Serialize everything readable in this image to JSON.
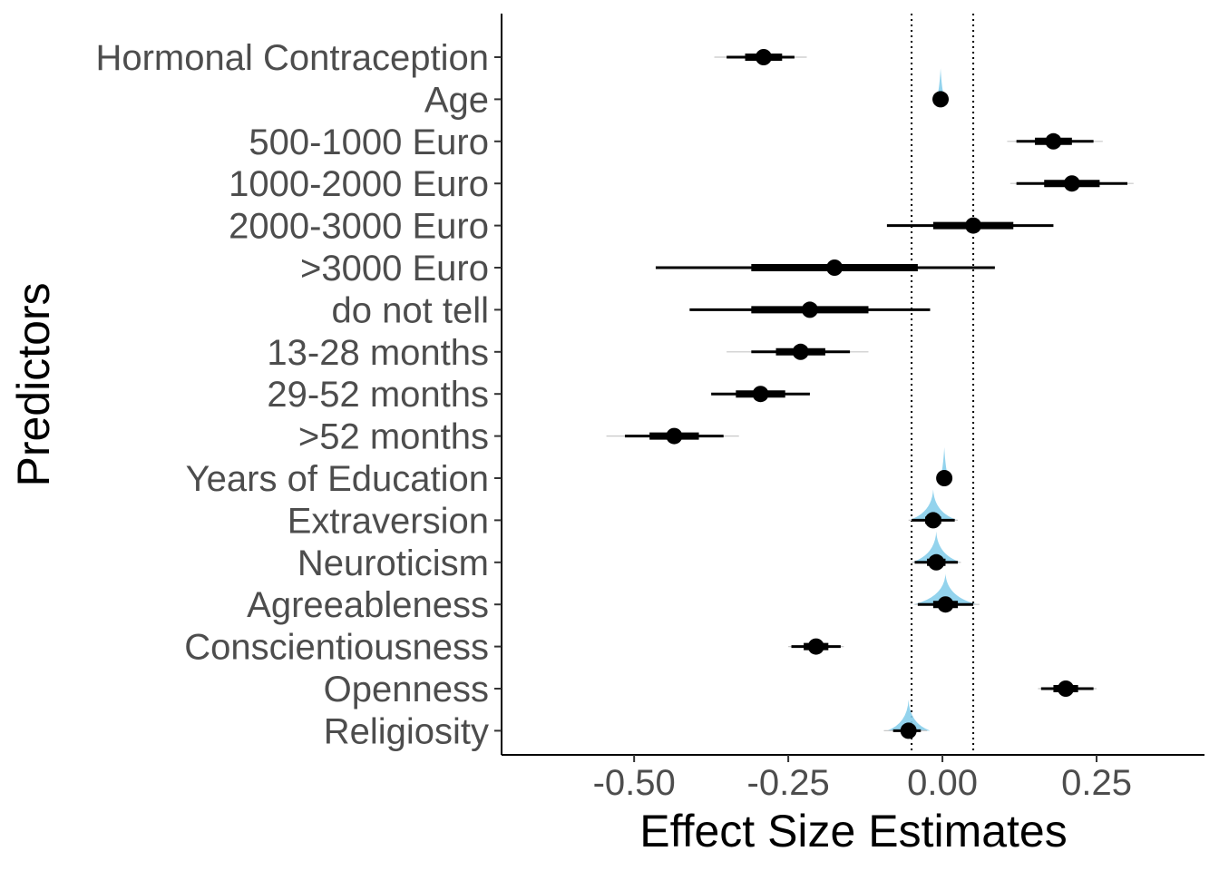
{
  "chart_data": {
    "type": "interval",
    "xlabel": "Effect Size Estimates",
    "ylabel": "Predictors",
    "xlim": [
      -0.715,
      0.425
    ],
    "x_ticks": [
      "-0.50",
      "-0.25",
      "0.00",
      "0.25"
    ],
    "x_tick_values": [
      -0.5,
      -0.25,
      0.0,
      0.25
    ],
    "reference_lines": [
      -0.05,
      0.05
    ],
    "reference_line_style": "dotted",
    "grid": false,
    "legend": "none",
    "colors": {
      "point": "#000000",
      "interval": "#000000",
      "density": "#87ceeb",
      "text": "#4d4d4d"
    },
    "predictors": [
      {
        "label": "Hormonal Contraception",
        "estimate": -0.29,
        "inner": [
          -0.32,
          -0.26
        ],
        "middle": [
          -0.35,
          -0.24
        ],
        "outer": [
          -0.37,
          -0.22
        ],
        "density": false
      },
      {
        "label": "Age",
        "estimate": -0.003,
        "inner": [
          -0.006,
          0.0
        ],
        "middle": [
          -0.008,
          0.002
        ],
        "outer": [
          -0.01,
          0.004
        ],
        "density": true
      },
      {
        "label": "500-1000 Euro",
        "estimate": 0.18,
        "inner": [
          0.15,
          0.21
        ],
        "middle": [
          0.12,
          0.245
        ],
        "outer": [
          0.105,
          0.26
        ],
        "density": false
      },
      {
        "label": "1000-2000 Euro",
        "estimate": 0.21,
        "inner": [
          0.165,
          0.255
        ],
        "middle": [
          0.12,
          0.3
        ],
        "outer": [
          0.11,
          0.31
        ],
        "density": false
      },
      {
        "label": "2000-3000 Euro",
        "estimate": 0.05,
        "inner": [
          -0.015,
          0.115
        ],
        "middle": [
          -0.09,
          0.18
        ],
        "outer": [
          -0.09,
          0.18
        ],
        "density": false
      },
      {
        "label": ">3000 Euro",
        "estimate": -0.175,
        "inner": [
          -0.31,
          -0.04
        ],
        "middle": [
          -0.465,
          0.085
        ],
        "outer": [
          -0.465,
          0.085
        ],
        "density": false
      },
      {
        "label": "do not tell",
        "estimate": -0.215,
        "inner": [
          -0.31,
          -0.12
        ],
        "middle": [
          -0.41,
          -0.02
        ],
        "outer": [
          -0.41,
          -0.02
        ],
        "density": false
      },
      {
        "label": "13-28 months",
        "estimate": -0.23,
        "inner": [
          -0.27,
          -0.19
        ],
        "middle": [
          -0.31,
          -0.15
        ],
        "outer": [
          -0.35,
          -0.12
        ],
        "density": false
      },
      {
        "label": "29-52 months",
        "estimate": -0.295,
        "inner": [
          -0.335,
          -0.255
        ],
        "middle": [
          -0.375,
          -0.215
        ],
        "outer": [
          -0.375,
          -0.215
        ],
        "density": false
      },
      {
        "label": ">52 months",
        "estimate": -0.435,
        "inner": [
          -0.475,
          -0.395
        ],
        "middle": [
          -0.515,
          -0.355
        ],
        "outer": [
          -0.545,
          -0.33
        ],
        "density": false
      },
      {
        "label": "Years of Education",
        "estimate": 0.003,
        "inner": [
          0.0,
          0.006
        ],
        "middle": [
          -0.002,
          0.008
        ],
        "outer": [
          -0.004,
          0.01
        ],
        "density": true
      },
      {
        "label": "Extraversion",
        "estimate": -0.015,
        "inner": [
          -0.028,
          -0.002
        ],
        "middle": [
          -0.05,
          0.02
        ],
        "outer": [
          -0.055,
          0.025
        ],
        "density": true
      },
      {
        "label": "Neuroticism",
        "estimate": -0.01,
        "inner": [
          -0.025,
          0.005
        ],
        "middle": [
          -0.045,
          0.025
        ],
        "outer": [
          -0.05,
          0.03
        ],
        "density": true
      },
      {
        "label": "Agreeableness",
        "estimate": 0.005,
        "inner": [
          -0.015,
          0.025
        ],
        "middle": [
          -0.04,
          0.05
        ],
        "outer": [
          -0.045,
          0.06
        ],
        "density": true
      },
      {
        "label": "Conscientiousness",
        "estimate": -0.205,
        "inner": [
          -0.225,
          -0.185
        ],
        "middle": [
          -0.245,
          -0.165
        ],
        "outer": [
          -0.25,
          -0.16
        ],
        "density": false
      },
      {
        "label": "Openness",
        "estimate": 0.2,
        "inner": [
          0.18,
          0.22
        ],
        "middle": [
          0.16,
          0.245
        ],
        "outer": [
          0.155,
          0.25
        ],
        "density": false
      },
      {
        "label": "Religiosity",
        "estimate": -0.055,
        "inner": [
          -0.065,
          -0.045
        ],
        "middle": [
          -0.08,
          -0.035
        ],
        "outer": [
          -0.095,
          -0.025
        ],
        "density": true
      }
    ]
  }
}
